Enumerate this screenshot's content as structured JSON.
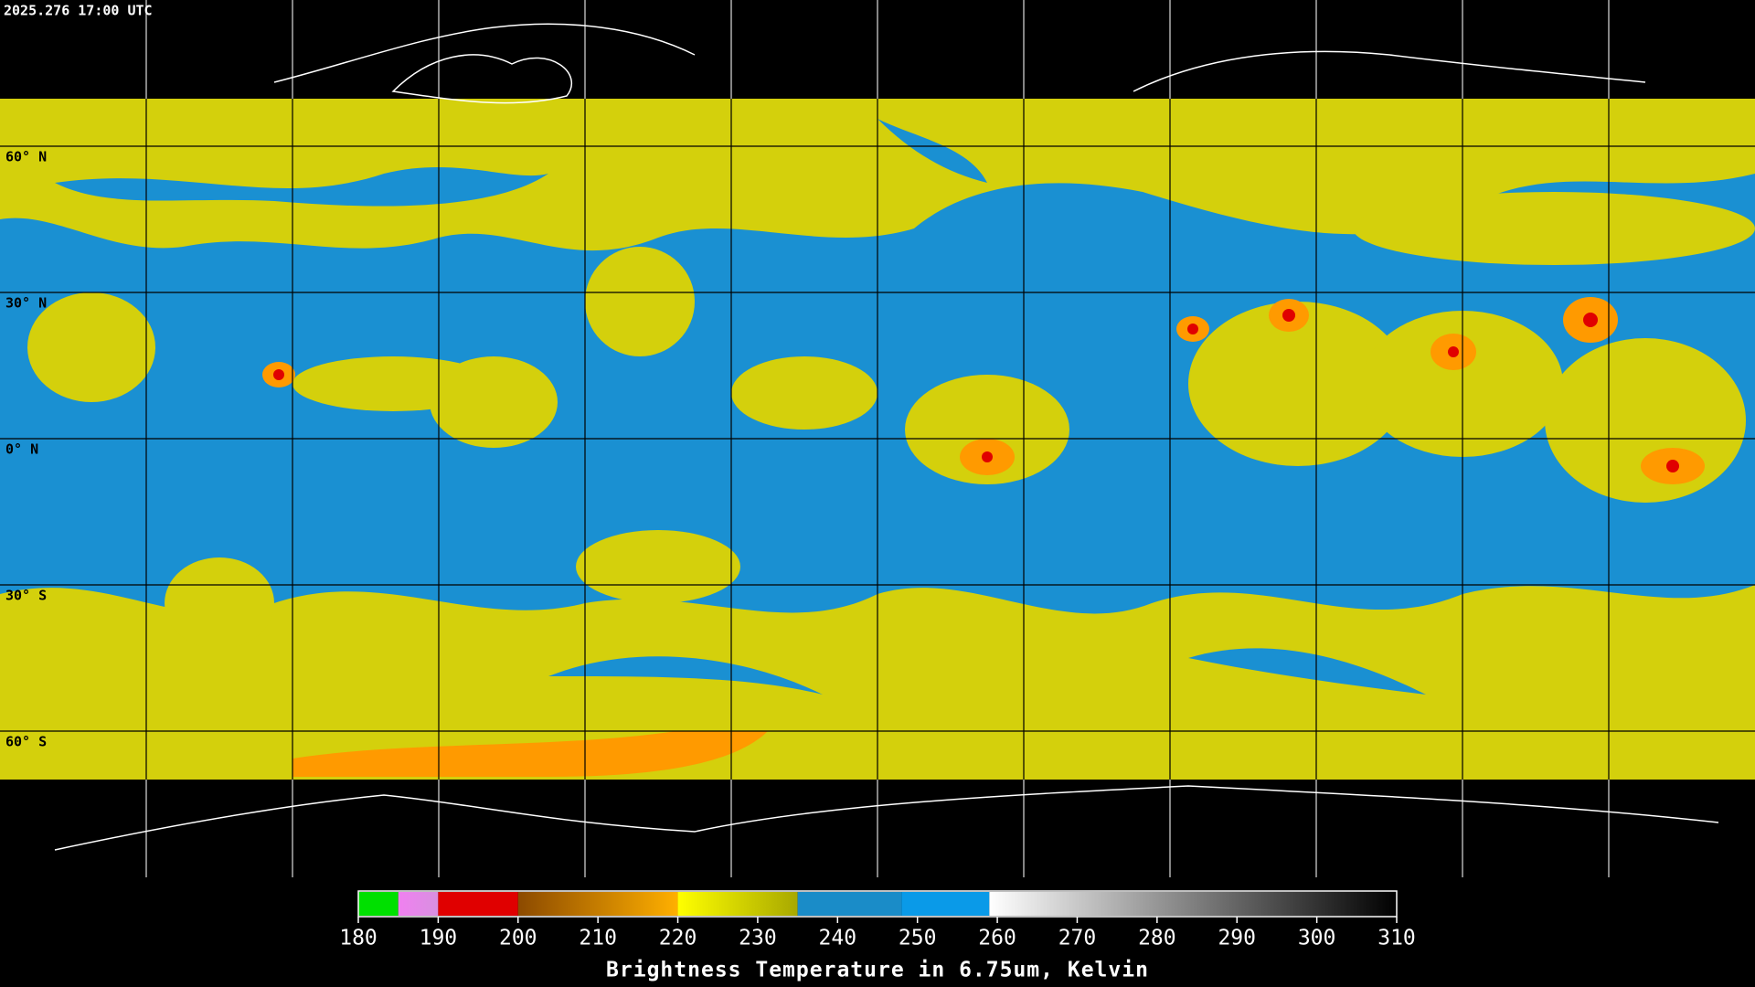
{
  "header": {
    "timestamp": "2025.276 17:00 UTC"
  },
  "map": {
    "latitude_labels": [
      "60° N",
      "30° N",
      "0° N",
      "30° S",
      "60° S"
    ]
  },
  "colorbar": {
    "range": [
      180,
      310
    ],
    "ticks": [
      180,
      190,
      200,
      210,
      220,
      230,
      240,
      250,
      260,
      270,
      280,
      290,
      300,
      310
    ],
    "segments": [
      {
        "from": 180,
        "to": 185,
        "colors": [
          "#00e000",
          "#00e000"
        ]
      },
      {
        "from": 185,
        "to": 190,
        "colors": [
          "#f080f0",
          "#d890e0"
        ]
      },
      {
        "from": 190,
        "to": 200,
        "colors": [
          "#e00000",
          "#e00000"
        ]
      },
      {
        "from": 200,
        "to": 220,
        "colors": [
          "#8c4a00",
          "#ffb000"
        ]
      },
      {
        "from": 220,
        "to": 235,
        "colors": [
          "#ffff00",
          "#a8a800"
        ]
      },
      {
        "from": 235,
        "to": 248,
        "colors": [
          "#1a8cc8",
          "#1a8cc8"
        ]
      },
      {
        "from": 248,
        "to": 259,
        "colors": [
          "#0a9ae8",
          "#0a9ae8"
        ]
      },
      {
        "from": 259,
        "to": 310,
        "colors": [
          "#ffffff",
          "#000000"
        ]
      }
    ],
    "title": "Brightness Temperature in 6.75um, Kelvin"
  }
}
